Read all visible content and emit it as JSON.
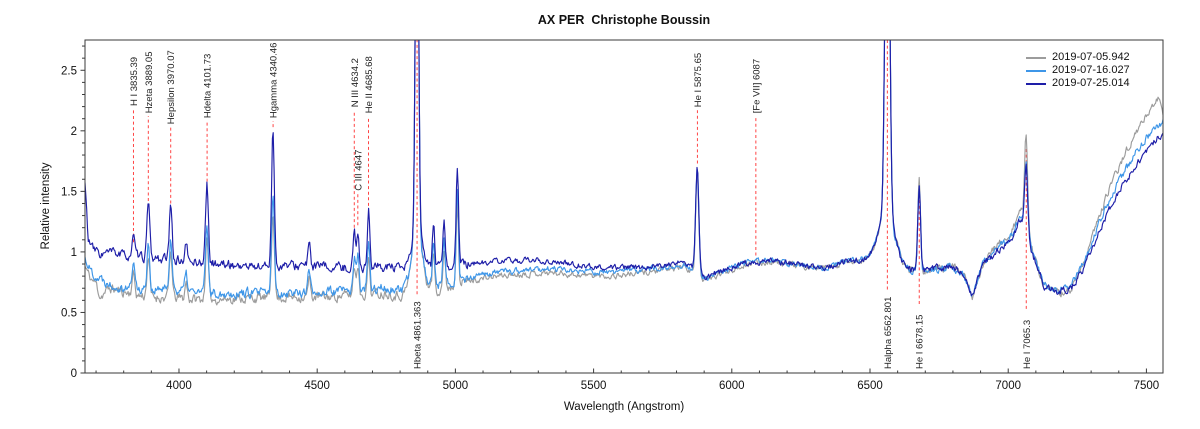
{
  "chart_data": {
    "type": "line",
    "title": "AX PER  Christophe Boussin",
    "xlabel": "Wavelength (Angstrom)",
    "ylabel": "Relative intensity",
    "xlim": [
      3660,
      7560
    ],
    "ylim": [
      0,
      2.75
    ],
    "x_major_ticks": [
      4000,
      4500,
      5000,
      5500,
      6000,
      6500,
      7000,
      7500
    ],
    "x_minor_step": 100,
    "y_major_ticks": [
      0,
      0.5,
      1,
      1.5,
      2,
      2.5
    ],
    "y_minor_step": 0.1,
    "grid": false,
    "legend_position": "top-right",
    "axis_color": "#3a3a3a",
    "tick_label_color": "#111111",
    "marker_color": "#ff4444",
    "marker_label_color": "#222222",
    "series": [
      {
        "name": "2019-07-05.942",
        "color": "#9c9c9c",
        "noise": 0.03,
        "seed": 11,
        "continuum": [
          [
            3660,
            0.88
          ],
          [
            3680,
            0.78
          ],
          [
            3700,
            0.74
          ],
          [
            3715,
            0.63
          ],
          [
            3750,
            0.7
          ],
          [
            3800,
            0.67
          ],
          [
            3850,
            0.64
          ],
          [
            3900,
            0.63
          ],
          [
            3950,
            0.62
          ],
          [
            4000,
            0.62
          ],
          [
            4050,
            0.61
          ],
          [
            4150,
            0.61
          ],
          [
            4250,
            0.62
          ],
          [
            4350,
            0.62
          ],
          [
            4450,
            0.63
          ],
          [
            4550,
            0.63
          ],
          [
            4650,
            0.65
          ],
          [
            4750,
            0.66
          ],
          [
            4820,
            0.63
          ],
          [
            4900,
            0.67
          ],
          [
            4960,
            0.7
          ],
          [
            5050,
            0.76
          ],
          [
            5150,
            0.8
          ],
          [
            5250,
            0.82
          ],
          [
            5350,
            0.83
          ],
          [
            5450,
            0.81
          ],
          [
            5550,
            0.8
          ],
          [
            5650,
            0.82
          ],
          [
            5750,
            0.85
          ],
          [
            5830,
            0.88
          ],
          [
            5905,
            0.76
          ],
          [
            5960,
            0.82
          ],
          [
            6050,
            0.9
          ],
          [
            6150,
            0.92
          ],
          [
            6250,
            0.88
          ],
          [
            6330,
            0.86
          ],
          [
            6400,
            0.9
          ],
          [
            6480,
            0.93
          ],
          [
            6530,
            0.97
          ],
          [
            6600,
            0.88
          ],
          [
            6640,
            0.85
          ],
          [
            6720,
            0.85
          ],
          [
            6800,
            0.88
          ],
          [
            6840,
            0.8
          ],
          [
            6870,
            0.63
          ],
          [
            6910,
            0.92
          ],
          [
            6960,
            1.05
          ],
          [
            7010,
            1.15
          ],
          [
            7045,
            1.35
          ],
          [
            7090,
            1.0
          ],
          [
            7130,
            0.72
          ],
          [
            7180,
            0.65
          ],
          [
            7230,
            0.7
          ],
          [
            7280,
            0.95
          ],
          [
            7330,
            1.3
          ],
          [
            7380,
            1.6
          ],
          [
            7430,
            1.85
          ],
          [
            7480,
            2.05
          ],
          [
            7520,
            2.2
          ],
          [
            7545,
            2.27
          ],
          [
            7560,
            2.15
          ]
        ],
        "peaks": [
          [
            3835,
            0.82,
            7
          ],
          [
            3889,
            0.95,
            7
          ],
          [
            3970,
            1.0,
            7
          ],
          [
            4026,
            0.75,
            6
          ],
          [
            4101,
            1.1,
            7
          ],
          [
            4340,
            1.35,
            7
          ],
          [
            4471,
            0.78,
            6
          ],
          [
            4634,
            0.88,
            6
          ],
          [
            4647,
            0.9,
            6
          ],
          [
            4686,
            0.95,
            6
          ],
          [
            4861,
            1.15,
            28
          ],
          [
            4861,
            4.2,
            8
          ],
          [
            4921,
            0.98,
            6
          ],
          [
            4959,
            1.0,
            6
          ],
          [
            5007,
            1.45,
            6
          ],
          [
            5875,
            1.65,
            8
          ],
          [
            6563,
            1.3,
            40
          ],
          [
            6562.8,
            4.5,
            11
          ],
          [
            6678,
            1.62,
            7
          ],
          [
            7065,
            1.96,
            8
          ]
        ]
      },
      {
        "name": "2019-07-16.027",
        "color": "#3e96e8",
        "noise": 0.03,
        "seed": 22,
        "continuum": [
          [
            3660,
            0.95
          ],
          [
            3680,
            0.85
          ],
          [
            3700,
            0.8
          ],
          [
            3750,
            0.74
          ],
          [
            3800,
            0.71
          ],
          [
            3850,
            0.7
          ],
          [
            3900,
            0.68
          ],
          [
            3950,
            0.69
          ],
          [
            4000,
            0.69
          ],
          [
            4050,
            0.67
          ],
          [
            4150,
            0.66
          ],
          [
            4250,
            0.66
          ],
          [
            4350,
            0.66
          ],
          [
            4450,
            0.67
          ],
          [
            4550,
            0.67
          ],
          [
            4650,
            0.69
          ],
          [
            4750,
            0.7
          ],
          [
            4820,
            0.66
          ],
          [
            4900,
            0.7
          ],
          [
            4960,
            0.73
          ],
          [
            5050,
            0.79
          ],
          [
            5150,
            0.83
          ],
          [
            5250,
            0.85
          ],
          [
            5350,
            0.86
          ],
          [
            5450,
            0.84
          ],
          [
            5550,
            0.83
          ],
          [
            5650,
            0.85
          ],
          [
            5750,
            0.87
          ],
          [
            5830,
            0.9
          ],
          [
            5905,
            0.77
          ],
          [
            5960,
            0.83
          ],
          [
            6050,
            0.91
          ],
          [
            6150,
            0.93
          ],
          [
            6250,
            0.89
          ],
          [
            6330,
            0.87
          ],
          [
            6400,
            0.91
          ],
          [
            6480,
            0.94
          ],
          [
            6530,
            0.98
          ],
          [
            6600,
            0.88
          ],
          [
            6640,
            0.85
          ],
          [
            6720,
            0.86
          ],
          [
            6800,
            0.88
          ],
          [
            6840,
            0.8
          ],
          [
            6870,
            0.64
          ],
          [
            6910,
            0.92
          ],
          [
            6960,
            1.03
          ],
          [
            7010,
            1.12
          ],
          [
            7045,
            1.3
          ],
          [
            7090,
            0.98
          ],
          [
            7130,
            0.72
          ],
          [
            7180,
            0.67
          ],
          [
            7230,
            0.72
          ],
          [
            7280,
            0.95
          ],
          [
            7330,
            1.25
          ],
          [
            7380,
            1.5
          ],
          [
            7430,
            1.7
          ],
          [
            7480,
            1.88
          ],
          [
            7520,
            2.0
          ],
          [
            7545,
            2.05
          ],
          [
            7560,
            2.08
          ]
        ],
        "peaks": [
          [
            3835,
            0.92,
            7
          ],
          [
            3889,
            1.08,
            7
          ],
          [
            3970,
            1.12,
            7
          ],
          [
            4026,
            0.82,
            6
          ],
          [
            4101,
            1.22,
            7
          ],
          [
            4340,
            1.48,
            7
          ],
          [
            4471,
            0.85,
            6
          ],
          [
            4634,
            0.95,
            6
          ],
          [
            4647,
            0.97,
            6
          ],
          [
            4686,
            1.06,
            6
          ],
          [
            4861,
            1.15,
            28
          ],
          [
            4861,
            4.2,
            8
          ],
          [
            4921,
            1.08,
            6
          ],
          [
            4959,
            1.08,
            6
          ],
          [
            5007,
            1.55,
            6
          ],
          [
            5875,
            1.7,
            8
          ],
          [
            6563,
            1.3,
            40
          ],
          [
            6562.8,
            4.5,
            11
          ],
          [
            6678,
            1.58,
            7
          ],
          [
            7065,
            1.76,
            8
          ]
        ]
      },
      {
        "name": "2019-07-25.014",
        "color": "#1e1ea8",
        "noise": 0.028,
        "seed": 33,
        "continuum": [
          [
            3660,
            1.57
          ],
          [
            3672,
            1.1
          ],
          [
            3690,
            1.02
          ],
          [
            3720,
            0.98
          ],
          [
            3760,
            1.0
          ],
          [
            3800,
            0.97
          ],
          [
            3850,
            0.96
          ],
          [
            3900,
            0.95
          ],
          [
            3950,
            0.94
          ],
          [
            4000,
            0.93
          ],
          [
            4050,
            0.92
          ],
          [
            4150,
            0.9
          ],
          [
            4250,
            0.88
          ],
          [
            4350,
            0.88
          ],
          [
            4450,
            0.89
          ],
          [
            4550,
            0.87
          ],
          [
            4650,
            0.87
          ],
          [
            4750,
            0.88
          ],
          [
            4820,
            0.84
          ],
          [
            4900,
            0.86
          ],
          [
            4960,
            0.88
          ],
          [
            5050,
            0.9
          ],
          [
            5150,
            0.92
          ],
          [
            5250,
            0.93
          ],
          [
            5350,
            0.92
          ],
          [
            5450,
            0.89
          ],
          [
            5550,
            0.87
          ],
          [
            5650,
            0.87
          ],
          [
            5750,
            0.89
          ],
          [
            5830,
            0.92
          ],
          [
            5905,
            0.78
          ],
          [
            5960,
            0.84
          ],
          [
            6050,
            0.91
          ],
          [
            6150,
            0.93
          ],
          [
            6250,
            0.89
          ],
          [
            6330,
            0.87
          ],
          [
            6400,
            0.91
          ],
          [
            6480,
            0.94
          ],
          [
            6530,
            0.98
          ],
          [
            6600,
            0.88
          ],
          [
            6640,
            0.85
          ],
          [
            6720,
            0.86
          ],
          [
            6800,
            0.88
          ],
          [
            6840,
            0.8
          ],
          [
            6870,
            0.64
          ],
          [
            6910,
            0.9
          ],
          [
            6960,
            1.0
          ],
          [
            7010,
            1.1
          ],
          [
            7045,
            1.28
          ],
          [
            7090,
            0.96
          ],
          [
            7130,
            0.72
          ],
          [
            7180,
            0.66
          ],
          [
            7230,
            0.7
          ],
          [
            7280,
            0.9
          ],
          [
            7330,
            1.18
          ],
          [
            7380,
            1.42
          ],
          [
            7430,
            1.6
          ],
          [
            7480,
            1.78
          ],
          [
            7520,
            1.9
          ],
          [
            7545,
            1.95
          ],
          [
            7560,
            1.98
          ]
        ],
        "peaks": [
          [
            3835,
            1.12,
            7
          ],
          [
            3889,
            1.4,
            7
          ],
          [
            3970,
            1.37,
            7
          ],
          [
            4026,
            1.06,
            6
          ],
          [
            4101,
            1.56,
            7
          ],
          [
            4340,
            2.02,
            7
          ],
          [
            4471,
            1.06,
            6
          ],
          [
            4634,
            1.16,
            6
          ],
          [
            4647,
            1.18,
            6
          ],
          [
            4686,
            1.35,
            6
          ],
          [
            4861,
            1.15,
            28
          ],
          [
            4861,
            4.2,
            8
          ],
          [
            4921,
            1.22,
            6
          ],
          [
            4959,
            1.26,
            6
          ],
          [
            5007,
            1.7,
            6
          ],
          [
            5875,
            1.7,
            8
          ],
          [
            6563,
            1.3,
            40
          ],
          [
            6562.8,
            4.5,
            11
          ],
          [
            6678,
            1.55,
            7
          ],
          [
            7065,
            1.7,
            8
          ]
        ]
      }
    ],
    "markers": [
      {
        "wavelength": 3835.39,
        "label": "H I 3835.39",
        "position": "top",
        "line": [
          1.08,
          2.18
        ]
      },
      {
        "wavelength": 3889.05,
        "label": "Hzeta 3889.05",
        "position": "top",
        "line": [
          1.42,
          2.12
        ]
      },
      {
        "wavelength": 3970.07,
        "label": "Hepsilon 3970.07",
        "position": "top",
        "line": [
          1.4,
          2.03
        ]
      },
      {
        "wavelength": 4101.73,
        "label": "Hdelta 4101.73",
        "position": "top",
        "line": [
          1.58,
          2.08
        ]
      },
      {
        "wavelength": 4340.46,
        "label": "Hgamma 4340.46",
        "position": "top",
        "line": [
          2.03,
          2.08
        ]
      },
      {
        "wavelength": 4634.2,
        "label": "N III 4634.2",
        "position": "top",
        "line": [
          1.2,
          2.17
        ]
      },
      {
        "wavelength": 4647.0,
        "label": "C III 4647",
        "position": "top",
        "line": [
          1.22,
          1.48
        ]
      },
      {
        "wavelength": 4685.68,
        "label": "He II 4685.68",
        "position": "top",
        "line": [
          1.38,
          2.12
        ]
      },
      {
        "wavelength": 5875.65,
        "label": "He I 5875.65",
        "position": "top",
        "line": [
          1.73,
          2.17
        ]
      },
      {
        "wavelength": 6087.0,
        "label": "[Fe VII] 6087",
        "position": "top",
        "line": [
          0.97,
          2.12
        ]
      },
      {
        "wavelength": 4861.363,
        "label": "Hbeta 4861.363",
        "position": "bottom",
        "line": [
          0.65,
          2.75
        ]
      },
      {
        "wavelength": 6562.801,
        "label": "Halpha 6562.801",
        "position": "bottom",
        "line": [
          0.69,
          2.75
        ]
      },
      {
        "wavelength": 6678.15,
        "label": "He I 6678.15",
        "position": "bottom",
        "line": [
          0.57,
          1.53
        ]
      },
      {
        "wavelength": 7065.3,
        "label": "He I 7065.3",
        "position": "bottom",
        "line": [
          0.53,
          1.85
        ]
      }
    ]
  }
}
